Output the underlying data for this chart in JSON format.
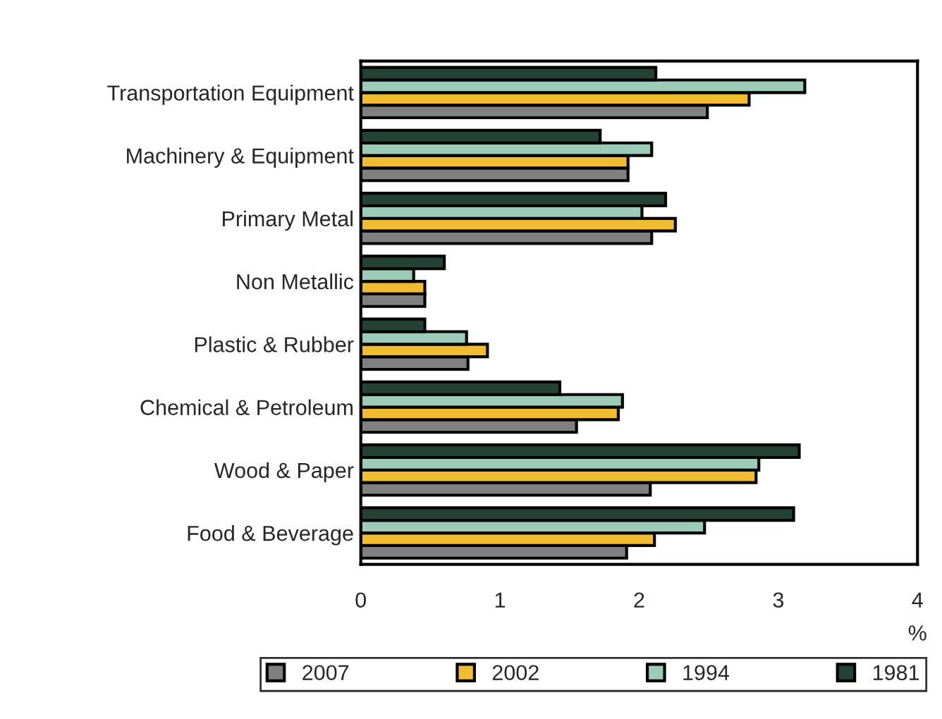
{
  "chart_data": {
    "type": "bar",
    "orientation": "horizontal",
    "xlabel": "%",
    "categories": [
      "Transportation Equipment",
      "Machinery & Equipment",
      "Primary Metal",
      "Non Metallic",
      "Plastic & Rubber",
      "Chemical & Petroleum",
      "Wood & Paper",
      "Food & Beverage"
    ],
    "series": [
      {
        "name": "2007",
        "color": "#808080",
        "values": [
          2.49,
          1.92,
          2.09,
          0.46,
          0.77,
          1.55,
          2.08,
          1.91
        ]
      },
      {
        "name": "2002",
        "color": "#f0bc30",
        "values": [
          2.79,
          1.92,
          2.26,
          0.46,
          0.91,
          1.85,
          2.84,
          2.11
        ]
      },
      {
        "name": "1994",
        "color": "#9ccbb8",
        "values": [
          3.19,
          2.09,
          2.02,
          0.38,
          0.76,
          1.88,
          2.86,
          2.47
        ]
      },
      {
        "name": "1981",
        "color": "#234235",
        "values": [
          2.12,
          1.72,
          2.19,
          0.6,
          0.46,
          1.43,
          3.15,
          3.11
        ]
      }
    ],
    "xlim": [
      0,
      4
    ],
    "xticks": [
      0,
      1,
      2,
      3,
      4
    ],
    "grid": false,
    "legend": "bottom"
  }
}
